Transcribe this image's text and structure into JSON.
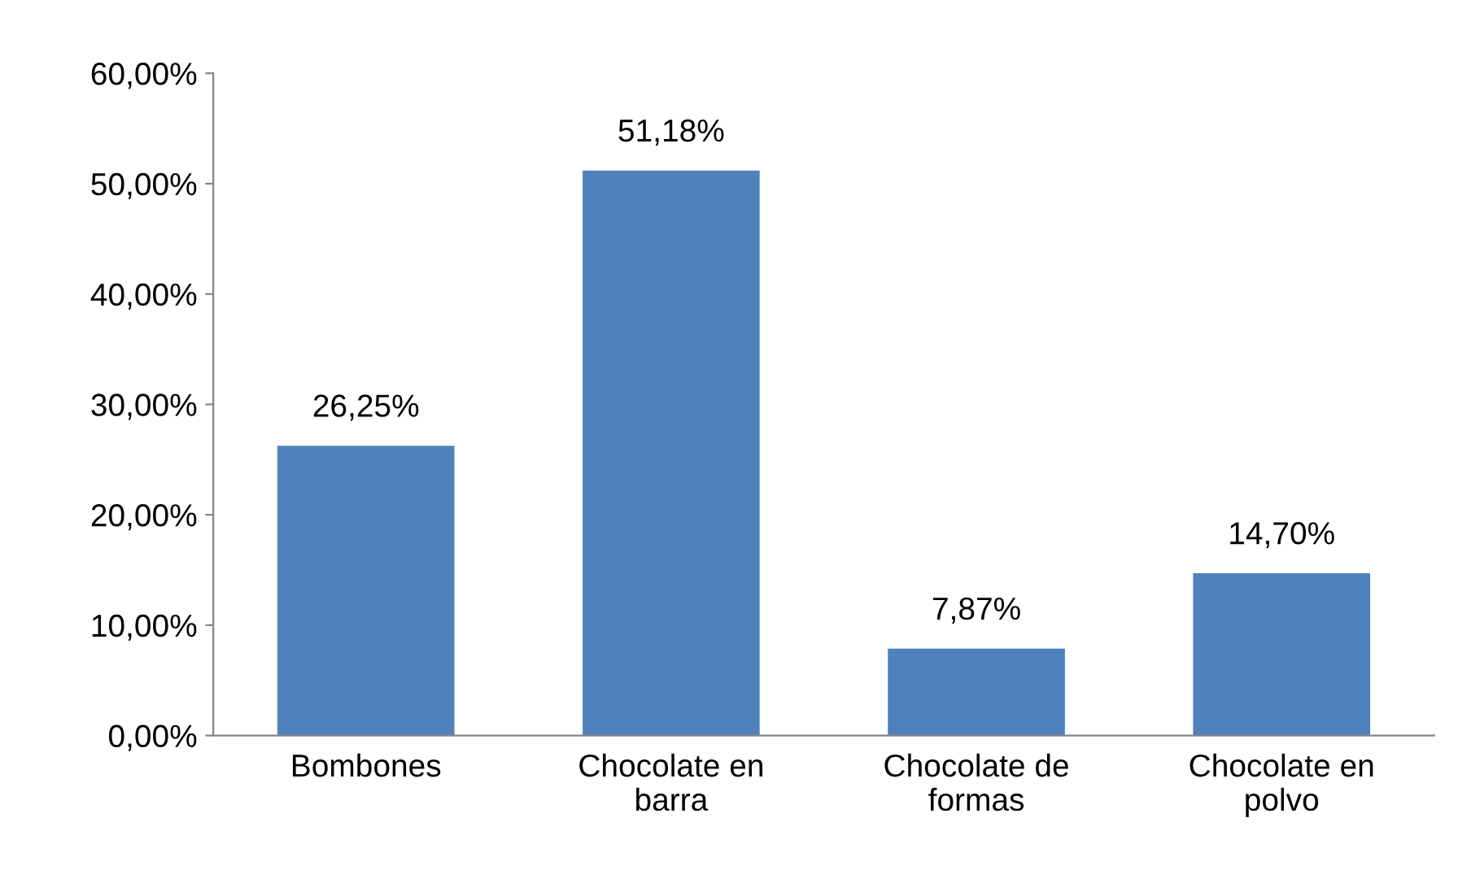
{
  "chart_data": {
    "type": "bar",
    "categories": [
      "Bombones",
      "Chocolate en\nbarra",
      "Chocolate de\nformas",
      "Chocolate en\npolvo"
    ],
    "values": [
      26.25,
      51.18,
      7.87,
      14.7
    ],
    "value_labels": [
      "26,25%",
      "51,18%",
      "7,87%",
      "14,70%"
    ],
    "color": "#4f81bd",
    "ylim": [
      0,
      60
    ],
    "yticks": [
      {
        "value": 0,
        "label": "0,00%"
      },
      {
        "value": 10,
        "label": "10,00%"
      },
      {
        "value": 20,
        "label": "20,00%"
      },
      {
        "value": 30,
        "label": "30,00%"
      },
      {
        "value": 40,
        "label": "40,00%"
      },
      {
        "value": 50,
        "label": "50,00%"
      },
      {
        "value": 60,
        "label": "60,00%"
      }
    ],
    "grid": false
  }
}
